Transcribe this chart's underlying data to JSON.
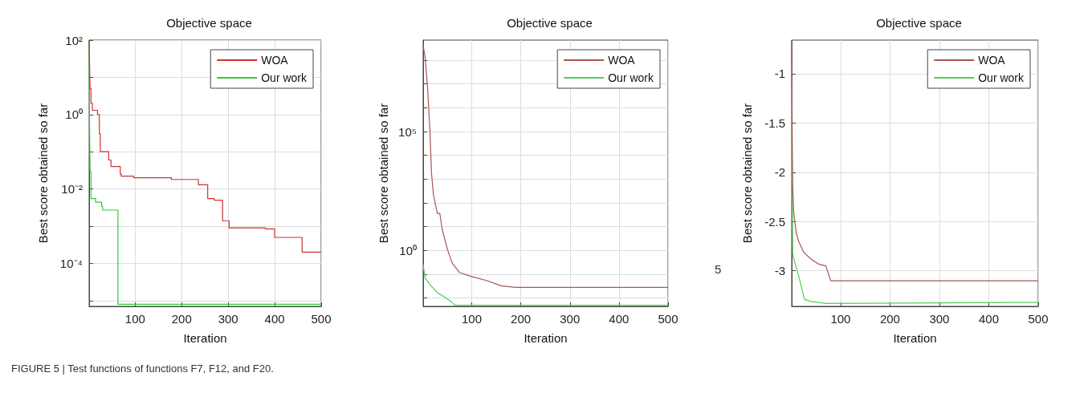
{
  "chart_data": [
    {
      "type": "step",
      "title": "Objective space",
      "xlabel": "Iteration",
      "ylabel": "Best score obtained so far",
      "log": "y",
      "grid": true,
      "legend": "top right",
      "marker": "none",
      "line_style": "solid",
      "xlim": [
        1,
        500
      ],
      "xticks": [
        100,
        200,
        300,
        400,
        500
      ],
      "ylim": [
        7e-06,
        100
      ],
      "yticks": [
        {
          "value": 1e-05,
          "label": null
        },
        {
          "value": 0.0001,
          "label": "10⁻⁴"
        },
        {
          "value": 0.001,
          "label": null
        },
        {
          "value": 0.01,
          "label": "10⁻²"
        },
        {
          "value": 0.1,
          "label": null
        },
        {
          "value": 1,
          "label": "10⁰"
        },
        {
          "value": 10,
          "label": null
        },
        {
          "value": 100,
          "label": "10²"
        }
      ],
      "annotations": [
        "FIGURE 5 | Test functions of functions F7, F12, and F20."
      ],
      "series": [
        {
          "name": "WOA",
          "color": "#cc3333",
          "x": [
            1,
            2,
            3,
            5,
            8,
            19,
            23,
            25,
            43,
            48,
            68,
            70,
            97,
            178,
            236,
            256,
            270,
            288,
            302,
            380,
            400,
            459,
            500
          ],
          "values": [
            100,
            20,
            5,
            2,
            1.3,
            1.0,
            0.3,
            0.1,
            0.06,
            0.04,
            0.025,
            0.022,
            0.02,
            0.018,
            0.013,
            0.0055,
            0.005,
            0.0014,
            0.0009,
            0.00085,
            0.0005,
            0.0002,
            0.0002
          ]
        },
        {
          "name": "Our work",
          "color": "#33cc33",
          "x": [
            1,
            2,
            3,
            5,
            15,
            28,
            30,
            63,
            500
          ],
          "values": [
            100,
            0.5,
            0.03,
            0.0055,
            0.0044,
            0.0034,
            0.0027,
            8e-06,
            8e-06
          ]
        }
      ]
    },
    {
      "type": "line",
      "title": "Objective space",
      "xlabel": "Iteration",
      "ylabel": "Best score obtained so far",
      "log": "y",
      "grid": true,
      "legend": "top right",
      "marker": "none",
      "line_style": "solid",
      "xlim": [
        1,
        500
      ],
      "xticks": [
        100,
        200,
        300,
        400,
        500
      ],
      "ylim": [
        0.0045,
        700000000.0
      ],
      "yticks": [
        {
          "value": 0.01,
          "label": null
        },
        {
          "value": 0.1,
          "label": null
        },
        {
          "value": 1,
          "label": "10⁰"
        },
        {
          "value": 10,
          "label": null
        },
        {
          "value": 100,
          "label": null
        },
        {
          "value": 1000,
          "label": null
        },
        {
          "value": 10000,
          "label": null
        },
        {
          "value": 100000,
          "label": "10⁵"
        },
        {
          "value": 1000000,
          "label": null
        },
        {
          "value": 10000000,
          "label": null
        },
        {
          "value": 100000000,
          "label": null
        }
      ],
      "series": [
        {
          "name": "WOA",
          "color": "#a85555",
          "x": [
            1,
            5,
            10,
            15,
            18,
            22,
            30,
            35,
            40,
            50,
            60,
            75,
            100,
            130,
            160,
            190,
            500
          ],
          "values": [
            400000000.0,
            140000000.0,
            7000000.0,
            90000.0,
            1800,
            220,
            36,
            36,
            7.6,
            1.2,
            0.3,
            0.12,
            0.08,
            0.055,
            0.033,
            0.028,
            0.028
          ]
        },
        {
          "name": "Our work",
          "color": "#55cc55",
          "x": [
            1,
            5,
            15,
            30,
            45,
            57,
            63,
            65,
            500
          ],
          "values": [
            0.26,
            0.07,
            0.037,
            0.017,
            0.011,
            0.0075,
            0.0056,
            0.005,
            0.005
          ]
        }
      ]
    },
    {
      "type": "line",
      "title": "Objective space",
      "xlabel": "Iteration",
      "ylabel": "Best score obtained so far",
      "grid": true,
      "legend": "top right",
      "marker": "none",
      "line_style": "solid",
      "xlim": [
        1,
        500
      ],
      "xticks": [
        100,
        200,
        300,
        400,
        500
      ],
      "ylim": [
        -3.36,
        -0.66
      ],
      "yticks": [
        -3,
        -2.5,
        -2,
        -1.5,
        -1
      ],
      "annotations": [
        "5"
      ],
      "series": [
        {
          "name": "WOA",
          "color": "#a85555",
          "x": [
            1,
            2,
            3,
            5,
            10,
            15,
            25,
            40,
            55,
            70,
            80,
            500
          ],
          "values": [
            -0.66,
            -1.6,
            -2.14,
            -2.4,
            -2.61,
            -2.7,
            -2.81,
            -2.88,
            -2.93,
            -2.95,
            -3.1,
            -3.1
          ]
        },
        {
          "name": "Our work",
          "color": "#55cc55",
          "x": [
            1,
            2,
            3,
            8,
            15,
            27,
            40,
            70,
            500
          ],
          "values": [
            -1.5,
            -2.07,
            -2.83,
            -2.93,
            -3.05,
            -3.29,
            -3.31,
            -3.33,
            -3.32
          ]
        }
      ]
    }
  ]
}
